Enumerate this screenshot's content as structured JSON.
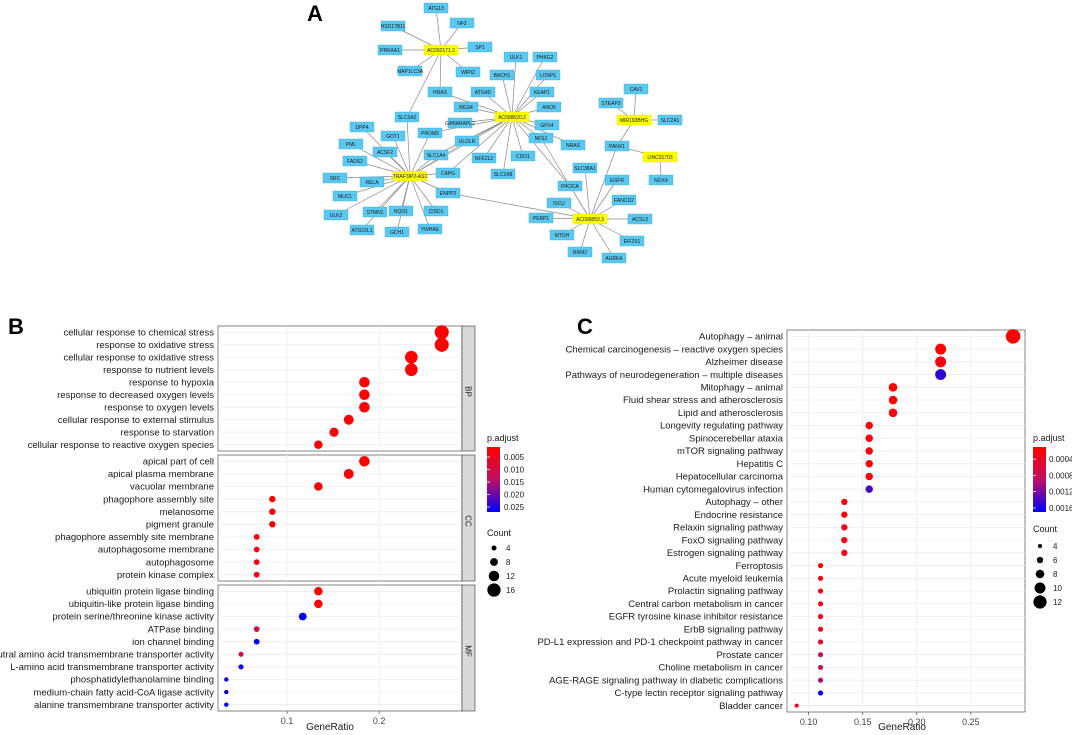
{
  "panels": {
    "a": "A",
    "b": "B",
    "c": "C"
  },
  "colors": {
    "gene_node": "#5bc8f0",
    "lnc_node": "#ffff00",
    "edge": "#888888",
    "grid": "#ebebeb",
    "strip": "#d9d9d9",
    "gradient_low_p": "#ff0000",
    "gradient_high_p": "#0000ff"
  },
  "chart_data": [
    {
      "type": "network",
      "title": "A",
      "hubs": [
        "AC092171.2",
        "AC068620.2",
        "TRAF3IP2-AS1",
        "AC099850.3",
        "MIR193BHG",
        "LINC01703"
      ],
      "nodes": [
        {
          "id": "ATG13",
          "hub": false
        },
        {
          "id": "NF2",
          "hub": false
        },
        {
          "id": "HSD17B11",
          "hub": false
        },
        {
          "id": "PRKAA1",
          "hub": false
        },
        {
          "id": "AC092171.2",
          "hub": true
        },
        {
          "id": "SP1",
          "hub": false
        },
        {
          "id": "MAP1LC3A",
          "hub": false
        },
        {
          "id": "WIPI2",
          "hub": false
        },
        {
          "id": "ULK1",
          "hub": false
        },
        {
          "id": "PHKG2",
          "hub": false
        },
        {
          "id": "BACH1",
          "hub": false
        },
        {
          "id": "LONP1",
          "hub": false
        },
        {
          "id": "HRAS",
          "hub": false
        },
        {
          "id": "ATG4D",
          "hub": false
        },
        {
          "id": "KEAP1",
          "hub": false
        },
        {
          "id": "RGS4",
          "hub": false
        },
        {
          "id": "ANO6",
          "hub": false
        },
        {
          "id": "AC068620.2",
          "hub": true
        },
        {
          "id": "SLC3A2",
          "hub": false
        },
        {
          "id": "GABARAPL2",
          "hub": false
        },
        {
          "id": "CAV1",
          "hub": false
        },
        {
          "id": "STEAP3",
          "hub": false
        },
        {
          "id": "MIR193BHG",
          "hub": true
        },
        {
          "id": "SLC2A1",
          "hub": false
        },
        {
          "id": "DPP4",
          "hub": false
        },
        {
          "id": "GOT1",
          "hub": false
        },
        {
          "id": "PROM2",
          "hub": false
        },
        {
          "id": "GPX4",
          "hub": false
        },
        {
          "id": "PML",
          "hub": false
        },
        {
          "id": "ACSF2",
          "hub": false
        },
        {
          "id": "ULDLR",
          "hub": false
        },
        {
          "id": "NFS1",
          "hub": false
        },
        {
          "id": "PANX1",
          "hub": false
        },
        {
          "id": "FADS2",
          "hub": false
        },
        {
          "id": "SLC1A4",
          "hub": false
        },
        {
          "id": "NFE2L2",
          "hub": false
        },
        {
          "id": "CDO1",
          "hub": false
        },
        {
          "id": "NRAS",
          "hub": false
        },
        {
          "id": "LINC01703",
          "hub": true
        },
        {
          "id": "SRC",
          "hub": false
        },
        {
          "id": "RELA",
          "hub": false
        },
        {
          "id": "TRAF3IP2-AS1",
          "hub": true
        },
        {
          "id": "CAPG",
          "hub": false
        },
        {
          "id": "SLC2A8",
          "hub": false
        },
        {
          "id": "SLC38A1",
          "hub": false
        },
        {
          "id": "NOX4",
          "hub": false
        },
        {
          "id": "MUC1",
          "hub": false
        },
        {
          "id": "EGFR",
          "hub": false
        },
        {
          "id": "ENPP2",
          "hub": false
        },
        {
          "id": "PIK3CA",
          "hub": false
        },
        {
          "id": "FANCD2",
          "hub": false
        },
        {
          "id": "ULK2",
          "hub": false
        },
        {
          "id": "STMN1",
          "hub": false
        },
        {
          "id": "NQO1",
          "hub": false
        },
        {
          "id": "CISD1",
          "hub": false
        },
        {
          "id": "ISCU",
          "hub": false
        },
        {
          "id": "PEBP1",
          "hub": false
        },
        {
          "id": "AC099850.3",
          "hub": true
        },
        {
          "id": "ACSL3",
          "hub": false
        },
        {
          "id": "ATG16L1",
          "hub": false
        },
        {
          "id": "GCH1",
          "hub": false
        },
        {
          "id": "YWHAE",
          "hub": false
        },
        {
          "id": "MTDH",
          "hub": false
        },
        {
          "id": "EIF2S1",
          "hub": false
        },
        {
          "id": "RRM2",
          "hub": false
        },
        {
          "id": "AURKA",
          "hub": false
        }
      ]
    },
    {
      "type": "scatter",
      "title": "B",
      "xlabel": "GeneRatio",
      "xlim": [
        0.025,
        0.29
      ],
      "xticks": [
        0.1,
        0.2
      ],
      "legend_color_title": "p.adjust",
      "color_range": [
        0.001,
        0.027
      ],
      "color_ticks": [
        0.005,
        0.01,
        0.015,
        0.02,
        0.025
      ],
      "legend_size_title": "Count",
      "size_ticks": [
        4,
        8,
        12,
        16
      ],
      "groups": [
        {
          "name": "BP",
          "rows": [
            {
              "term": "cellular response to chemical stress",
              "x": 0.268,
              "count": 17,
              "p": 0.001
            },
            {
              "term": "response to oxidative stress",
              "x": 0.268,
              "count": 17,
              "p": 0.001
            },
            {
              "term": "cellular response to oxidative stress",
              "x": 0.235,
              "count": 15,
              "p": 0.001
            },
            {
              "term": "response to nutrient levels",
              "x": 0.235,
              "count": 15,
              "p": 0.001
            },
            {
              "term": "response to hypoxia",
              "x": 0.184,
              "count": 12,
              "p": 0.0015
            },
            {
              "term": "response to decreased oxygen levels",
              "x": 0.184,
              "count": 12,
              "p": 0.0015
            },
            {
              "term": "response to oxygen levels",
              "x": 0.184,
              "count": 12,
              "p": 0.0015
            },
            {
              "term": "cellular response to external stimulus",
              "x": 0.167,
              "count": 11,
              "p": 0.0015
            },
            {
              "term": "response to starvation",
              "x": 0.151,
              "count": 10,
              "p": 0.002
            },
            {
              "term": "cellular response to reactive oxygen species",
              "x": 0.134,
              "count": 9,
              "p": 0.002
            }
          ]
        },
        {
          "name": "CC",
          "rows": [
            {
              "term": "apical part of cell",
              "x": 0.184,
              "count": 12,
              "p": 0.001
            },
            {
              "term": "apical plasma membrane",
              "x": 0.167,
              "count": 11,
              "p": 0.001
            },
            {
              "term": "vacuolar membrane",
              "x": 0.134,
              "count": 9,
              "p": 0.002
            },
            {
              "term": "phagophore assembly site",
              "x": 0.084,
              "count": 6,
              "p": 0.002
            },
            {
              "term": "melanosome",
              "x": 0.084,
              "count": 6,
              "p": 0.0025
            },
            {
              "term": "pigment granule",
              "x": 0.084,
              "count": 6,
              "p": 0.0025
            },
            {
              "term": "phagophore assembly site membrane",
              "x": 0.067,
              "count": 5,
              "p": 0.003
            },
            {
              "term": "autophagosome membrane",
              "x": 0.067,
              "count": 5,
              "p": 0.003
            },
            {
              "term": "autophagosome",
              "x": 0.067,
              "count": 5,
              "p": 0.003
            },
            {
              "term": "protein kinase complex",
              "x": 0.067,
              "count": 5,
              "p": 0.003
            }
          ]
        },
        {
          "name": "MF",
          "rows": [
            {
              "term": "ubiquitin protein ligase binding",
              "x": 0.134,
              "count": 9,
              "p": 0.0015
            },
            {
              "term": "ubiquitin-like protein ligase binding",
              "x": 0.134,
              "count": 9,
              "p": 0.0015
            },
            {
              "term": "protein serine/threonine kinase activity",
              "x": 0.117,
              "count": 8,
              "p": 0.026
            },
            {
              "term": "ATPase binding",
              "x": 0.067,
              "count": 5,
              "p": 0.012
            },
            {
              "term": "ion channel binding",
              "x": 0.067,
              "count": 5,
              "p": 0.026
            },
            {
              "term": "neutral amino acid transmembrane transporter activity",
              "x": 0.05,
              "count": 4,
              "p": 0.011
            },
            {
              "term": "L-amino acid transmembrane transporter activity",
              "x": 0.05,
              "count": 4,
              "p": 0.026
            },
            {
              "term": "phosphatidylethanolamine binding",
              "x": 0.034,
              "count": 3,
              "p": 0.026
            },
            {
              "term": "medium-chain fatty acid-CoA ligase activity",
              "x": 0.034,
              "count": 3,
              "p": 0.026
            },
            {
              "term": "alanine transmembrane transporter activity",
              "x": 0.034,
              "count": 3,
              "p": 0.026
            }
          ]
        }
      ]
    },
    {
      "type": "scatter",
      "title": "C",
      "xlabel": "GeneRatio",
      "xlim": [
        0.08,
        0.3
      ],
      "xticks": [
        0.1,
        0.15,
        0.2,
        0.25
      ],
      "legend_color_title": "p.adjust",
      "color_range": [
        0.0001,
        0.0017
      ],
      "color_ticks": [
        0.0004,
        0.0008,
        0.0012,
        0.0016
      ],
      "legend_size_title": "Count",
      "size_ticks": [
        4,
        6,
        8,
        10,
        12
      ],
      "rows": [
        {
          "term": "Autophagy – animal",
          "x": 0.289,
          "count": 13,
          "p": 0.0001
        },
        {
          "term": "Chemical carcinogenesis – reactive oxygen species",
          "x": 0.222,
          "count": 10,
          "p": 0.0001
        },
        {
          "term": "Alzheimer disease",
          "x": 0.222,
          "count": 10,
          "p": 0.0002
        },
        {
          "term": "Pathways of neurodegeneration – multiple diseases",
          "x": 0.222,
          "count": 10,
          "p": 0.0015
        },
        {
          "term": "Mitophagy – animal",
          "x": 0.178,
          "count": 8,
          "p": 0.0001
        },
        {
          "term": "Fluid shear stress and atherosclerosis",
          "x": 0.178,
          "count": 8,
          "p": 0.0001
        },
        {
          "term": "Lipid and atherosclerosis",
          "x": 0.178,
          "count": 8,
          "p": 0.0002
        },
        {
          "term": "Longevity regulating pathway",
          "x": 0.156,
          "count": 7,
          "p": 0.0002
        },
        {
          "term": "Spinocerebellar ataxia",
          "x": 0.156,
          "count": 7,
          "p": 0.0002
        },
        {
          "term": "mTOR signaling pathway",
          "x": 0.156,
          "count": 7,
          "p": 0.0002
        },
        {
          "term": "Hepatitis C",
          "x": 0.156,
          "count": 7,
          "p": 0.0002
        },
        {
          "term": "Hepatocellular carcinoma",
          "x": 0.156,
          "count": 7,
          "p": 0.0002
        },
        {
          "term": "Human cytomegalovirus infection",
          "x": 0.156,
          "count": 7,
          "p": 0.0014
        },
        {
          "term": "Autophagy – other",
          "x": 0.133,
          "count": 6,
          "p": 0.0001
        },
        {
          "term": "Endocrine resistance",
          "x": 0.133,
          "count": 6,
          "p": 0.0002
        },
        {
          "term": "Relaxin signaling pathway",
          "x": 0.133,
          "count": 6,
          "p": 0.0003
        },
        {
          "term": "FoxO signaling pathway",
          "x": 0.133,
          "count": 6,
          "p": 0.0003
        },
        {
          "term": "Estrogen signaling pathway",
          "x": 0.133,
          "count": 6,
          "p": 0.0003
        },
        {
          "term": "Ferroptosis",
          "x": 0.111,
          "count": 5,
          "p": 0.0001
        },
        {
          "term": "Acute myeloid leukemia",
          "x": 0.111,
          "count": 5,
          "p": 0.0002
        },
        {
          "term": "Prolactin signaling pathway",
          "x": 0.111,
          "count": 5,
          "p": 0.0002
        },
        {
          "term": "Central carbon metabolism in cancer",
          "x": 0.111,
          "count": 5,
          "p": 0.0002
        },
        {
          "term": "EGFR tyrosine kinase inhibitor resistance",
          "x": 0.111,
          "count": 5,
          "p": 0.0003
        },
        {
          "term": "ErbB signaling pathway",
          "x": 0.111,
          "count": 5,
          "p": 0.0004
        },
        {
          "term": "PD-L1 expression and PD-1 checkpoint pathway in cancer",
          "x": 0.111,
          "count": 5,
          "p": 0.0005
        },
        {
          "term": "Prostate cancer",
          "x": 0.111,
          "count": 5,
          "p": 0.0007
        },
        {
          "term": "Choline metabolism in cancer",
          "x": 0.111,
          "count": 5,
          "p": 0.0009
        },
        {
          "term": "AGE-RAGE signaling pathway in diabetic complications",
          "x": 0.111,
          "count": 5,
          "p": 0.001
        },
        {
          "term": "C-type lectin receptor signaling pathway",
          "x": 0.111,
          "count": 5,
          "p": 0.0017
        },
        {
          "term": "Bladder cancer",
          "x": 0.089,
          "count": 4,
          "p": 0.0003
        }
      ]
    }
  ]
}
